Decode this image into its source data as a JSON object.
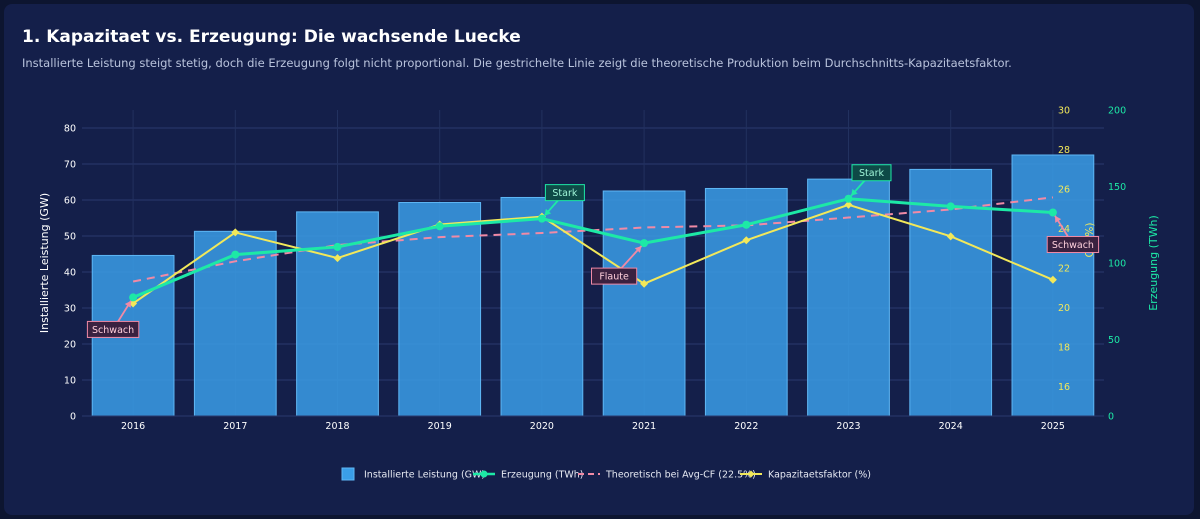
{
  "page": {
    "title": "1. Kapazitaet vs. Erzeugung: Die wachsende Luecke",
    "subtitle": "Installierte Leistung steigt stetig, doch die Erzeugung folgt nicht proportional. Die gestrichelte Linie zeigt die theoretische Produktion beim Durchschnitts-Kapazitaetsfaktor."
  },
  "colors": {
    "bar": "#3a9ee8",
    "generation": "#1de9a6",
    "theoretical": "#f08aa6",
    "capacity_factor": "#f2e85a",
    "cf_axis": "#f2e85a",
    "gen_axis": "#1de9a6",
    "left_axis": "#ffffff"
  },
  "chart_data": {
    "type": "bar",
    "categories": [
      "2016",
      "2017",
      "2018",
      "2019",
      "2020",
      "2021",
      "2022",
      "2023",
      "2024",
      "2025"
    ],
    "series": [
      {
        "name": "Installierte Leistung (GW)",
        "type": "bar",
        "axis": "y_left",
        "values": [
          44.6,
          51.3,
          56.7,
          59.3,
          60.7,
          62.5,
          63.2,
          65.8,
          68.5,
          72.5
        ]
      },
      {
        "name": "Erzeugung (TWh)",
        "type": "line",
        "axis": "y_gen",
        "values": [
          77.5,
          105.5,
          110.5,
          124,
          129,
          113,
          125,
          142,
          137,
          133
        ]
      },
      {
        "name": "Theoretisch bei Avg-CF (22.5%)",
        "type": "line-dashed",
        "axis": "y_gen",
        "values": [
          87.9,
          101.1,
          111.7,
          116.9,
          119.6,
          123.2,
          124.6,
          129.7,
          135.0,
          142.9
        ]
      },
      {
        "name": "Kapazitaetsfaktor (%)",
        "type": "line",
        "axis": "y_cf",
        "values": [
          20.2,
          23.8,
          22.5,
          24.2,
          24.6,
          21.2,
          23.4,
          25.2,
          23.6,
          21.4
        ]
      }
    ],
    "axes": {
      "y_left": {
        "label": "Installierte Leistung (GW)",
        "range": [
          0,
          85
        ],
        "ticks": [
          "0",
          "10",
          "20",
          "30",
          "40",
          "50",
          "60",
          "70",
          "80"
        ]
      },
      "y_cf": {
        "label": "CF (%)",
        "range": [
          14.5,
          30
        ],
        "ticks": [
          "16",
          "18",
          "20",
          "22",
          "24",
          "26",
          "28",
          "30"
        ]
      },
      "y_gen": {
        "label": "Erzeugung (TWh)",
        "range": [
          0,
          200
        ],
        "ticks": [
          "0",
          "50",
          "100",
          "150",
          "200"
        ]
      }
    },
    "annotations": [
      {
        "text": "Schwach",
        "category": "2016",
        "series": "Erzeugung (TWh)",
        "style": "weak"
      },
      {
        "text": "Stark",
        "category": "2020",
        "series": "Erzeugung (TWh)",
        "style": "strong"
      },
      {
        "text": "Flaute",
        "category": "2021",
        "series": "Erzeugung (TWh)",
        "style": "weak"
      },
      {
        "text": "Stark",
        "category": "2023",
        "series": "Erzeugung (TWh)",
        "style": "strong"
      },
      {
        "text": "Schwach",
        "category": "2025",
        "series": "Erzeugung (TWh)",
        "style": "weak"
      }
    ],
    "legend_position": "bottom-center",
    "grid": true
  }
}
